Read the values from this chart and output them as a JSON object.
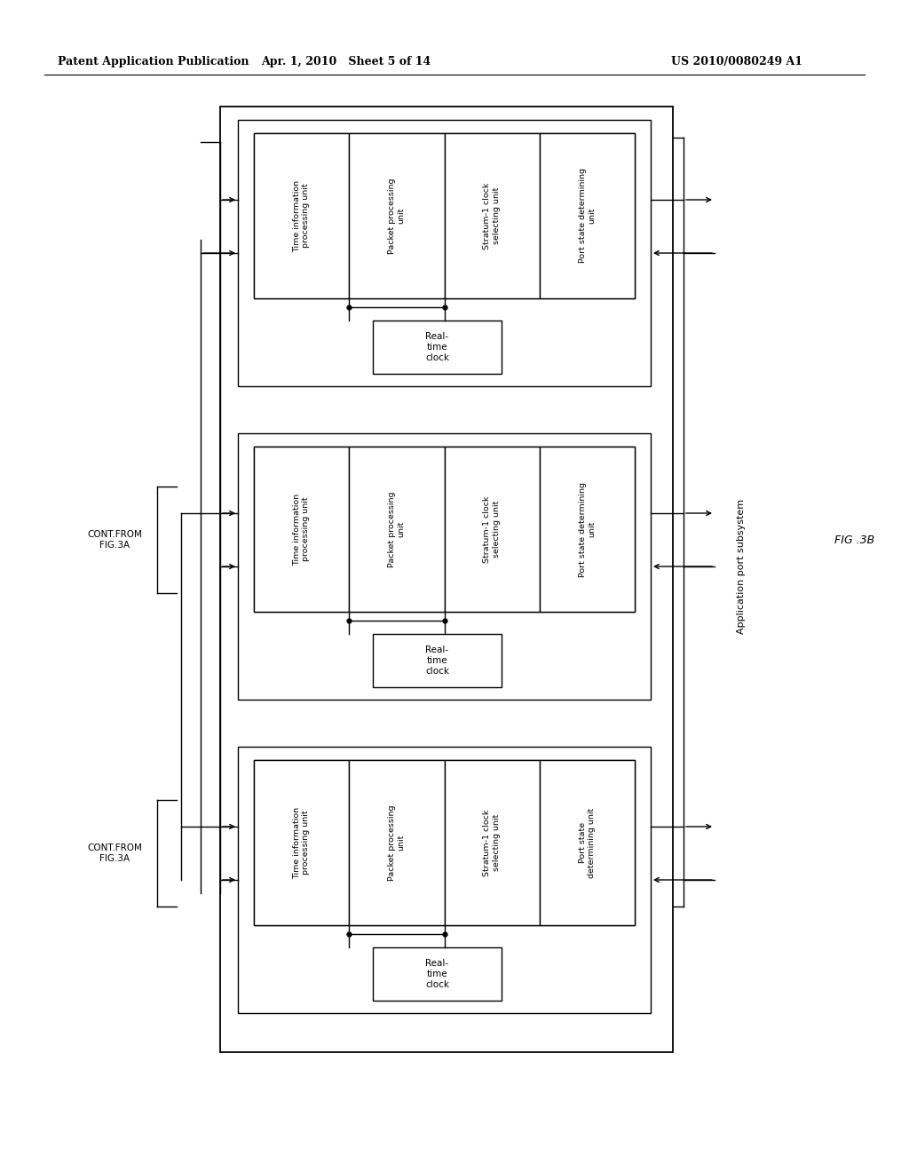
{
  "header_left": "Patent Application Publication",
  "header_middle": "Apr. 1, 2010   Sheet 5 of 14",
  "header_right": "US 2010/0080249 A1",
  "fig_label": "FIG .3B",
  "cont_from_labels": [
    "CONT.FROM\nFIG.3A",
    "CONT.FROM\nFIG.3A"
  ],
  "app_port_label": "Application port subsystem",
  "node_sub_labels": [
    [
      "Time information\nprocessing unit",
      "Packet processing\nunit",
      "Stratum-1 clock\nselecting unit",
      "Port state determining\nunit"
    ],
    [
      "Time information\nprocessing unit",
      "Packet processing\nunit",
      "Stratum-1 clock\nselecting unit",
      "Port state determining\nunit"
    ],
    [
      "Time information\nprocessing unit",
      "Packet processing\nunit",
      "Stratum-1 clock\nselecting unit",
      "Port state\ndetermining unit"
    ]
  ],
  "rtc_label": "Real-\ntime\nclock",
  "bg_color": "#ffffff",
  "lc": "#000000",
  "tc": "#000000",
  "lw": 1.0
}
